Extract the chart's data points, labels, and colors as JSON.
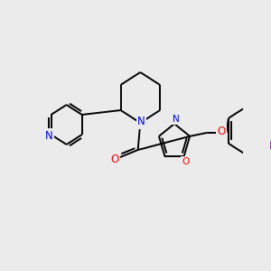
{
  "bg_color": "#ebebeb",
  "black": "#000000",
  "blue": "#0000FF",
  "red": "#FF0000",
  "magenta": "#CC00CC",
  "bond_lw": 1.4,
  "font_size": 8.5,
  "xlim": [
    0,
    300
  ],
  "ylim": [
    0,
    300
  ]
}
